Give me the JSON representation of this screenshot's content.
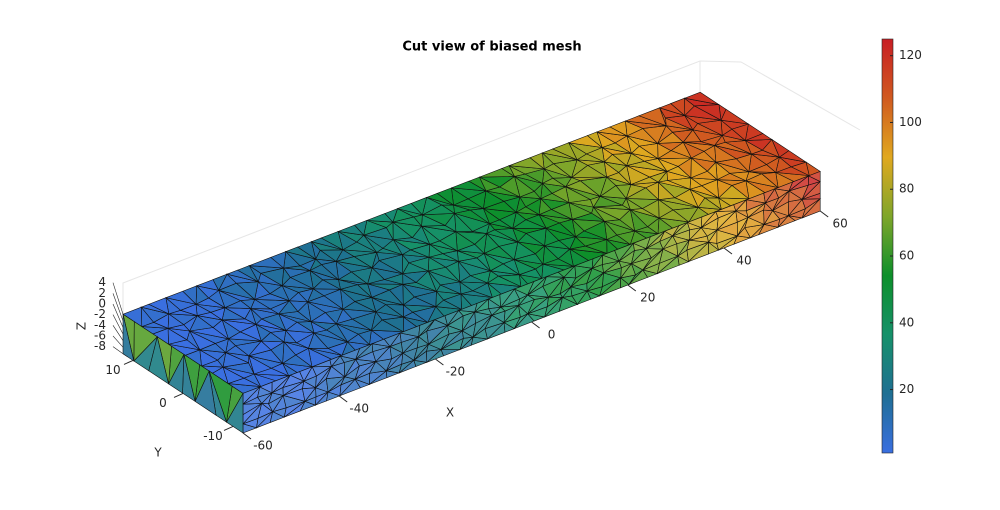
{
  "chart_data": {
    "type": "mesh3d",
    "title": "Cut view of biased mesh",
    "xlabel": "X",
    "ylabel": "Y",
    "zlabel": "Z",
    "xlim": [
      -60,
      60
    ],
    "ylim": [
      -12,
      12
    ],
    "zlim": [
      -8,
      4
    ],
    "xticks": [
      -60,
      -40,
      -20,
      0,
      20,
      40,
      60
    ],
    "yticks": [
      -10,
      0,
      10
    ],
    "zticks": [
      -8,
      -6,
      -4,
      -2,
      0,
      2,
      4
    ],
    "clim": [
      1,
      125
    ],
    "cticks": [
      20,
      40,
      60,
      80,
      100,
      120
    ],
    "colormap": [
      "#3a6fe0",
      "#1f6f93",
      "#16916a",
      "#0d8f2a",
      "#7fa62a",
      "#e0a820",
      "#d05a20",
      "#c81e24"
    ]
  }
}
